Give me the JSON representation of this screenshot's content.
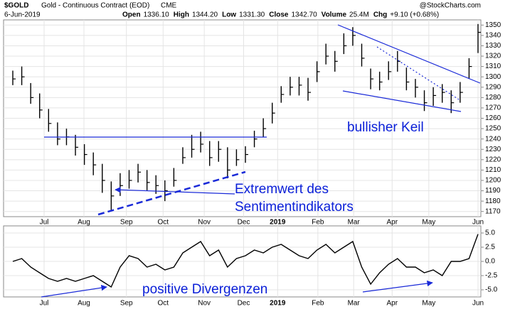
{
  "header": {
    "symbol": "$GOLD",
    "name": "Gold - Continuous Contract (EOD)",
    "exchange": "CME",
    "date": "6-Jun-2019",
    "source": "@StockCharts.com",
    "quote": [
      {
        "label": "Open",
        "value": "1336.10"
      },
      {
        "label": "High",
        "value": "1344.20"
      },
      {
        "label": "Low",
        "value": "1331.30"
      },
      {
        "label": "Close",
        "value": "1342.70"
      },
      {
        "label": "Volume",
        "value": "25.4M"
      },
      {
        "label": "Chg",
        "value": "+9.10 (+0.68%)"
      }
    ]
  },
  "chart_data": [
    {
      "type": "ohlc",
      "color": "#000000",
      "grid": true,
      "annotations": [
        "Extremwert des",
        "Sentimentindikators",
        "bullisher Keil"
      ],
      "series": [
        {
          "name": "High",
          "values": [
            1306,
            1310,
            1294,
            1284,
            1269,
            1256,
            1250,
            1244,
            1235,
            1227,
            1216,
            1199,
            1207,
            1210,
            1216,
            1210,
            1205,
            1200,
            1212,
            1232,
            1244,
            1247,
            1238,
            1238,
            1232,
            1230,
            1233,
            1248,
            1260,
            1275,
            1291,
            1300,
            1300,
            1299,
            1315,
            1332,
            1325,
            1342,
            1348,
            1332,
            1308,
            1305,
            1315,
            1325,
            1309,
            1298,
            1287,
            1290,
            1293,
            1287,
            1295,
            1318,
            1351
          ]
        },
        {
          "name": "Low",
          "values": [
            1292,
            1292,
            1274,
            1260,
            1247,
            1234,
            1234,
            1224,
            1215,
            1205,
            1188,
            1171,
            1185,
            1192,
            1198,
            1190,
            1187,
            1180,
            1194,
            1216,
            1222,
            1227,
            1214,
            1218,
            1202,
            1214,
            1217,
            1232,
            1242,
            1255,
            1275,
            1282,
            1282,
            1277,
            1295,
            1312,
            1305,
            1322,
            1330,
            1310,
            1288,
            1287,
            1297,
            1305,
            1287,
            1280,
            1267,
            1272,
            1275,
            1265,
            1275,
            1298,
            1323
          ]
        },
        {
          "name": "Close",
          "values": [
            1298,
            1300,
            1280,
            1268,
            1255,
            1240,
            1242,
            1232,
            1225,
            1215,
            1200,
            1185,
            1195,
            1200,
            1208,
            1198,
            1195,
            1190,
            1200,
            1222,
            1230,
            1235,
            1222,
            1230,
            1210,
            1220,
            1225,
            1240,
            1250,
            1265,
            1283,
            1290,
            1292,
            1285,
            1305,
            1320,
            1315,
            1330,
            1340,
            1318,
            1298,
            1295,
            1305,
            1315,
            1295,
            1290,
            1275,
            1282,
            1285,
            1275,
            1285,
            1310,
            1343
          ]
        }
      ],
      "ylim": [
        1165,
        1355
      ],
      "yticks": [
        1170,
        1180,
        1190,
        1200,
        1210,
        1220,
        1230,
        1240,
        1250,
        1260,
        1270,
        1280,
        1290,
        1300,
        1310,
        1320,
        1330,
        1340,
        1350
      ],
      "xlim": [
        0,
        52
      ],
      "xticks": [
        {
          "value": 3.5,
          "label": "Jul"
        },
        {
          "value": 7.95,
          "label": "Aug"
        },
        {
          "value": 12.7,
          "label": "Sep"
        },
        {
          "value": 16.8,
          "label": "Oct"
        },
        {
          "value": 21.4,
          "label": "Nov"
        },
        {
          "value": 25.8,
          "label": "Dec"
        },
        {
          "value": 29.6,
          "label": "2019"
        },
        {
          "value": 34.1,
          "label": "Feb"
        },
        {
          "value": 38.1,
          "label": "Mar"
        },
        {
          "value": 42.4,
          "label": "Apr"
        },
        {
          "value": 46.5,
          "label": "May"
        },
        {
          "value": 52,
          "label": "Jun"
        }
      ]
    },
    {
      "type": "line",
      "color": "#000000",
      "grid": true,
      "annotations": [
        "positive Divergenzen"
      ],
      "series": [
        {
          "name": "Sentiment",
          "values": [
            0.0,
            0.5,
            -1.0,
            -2.0,
            -3.0,
            -3.5,
            -3.0,
            -3.5,
            -3.0,
            -2.5,
            -3.5,
            -4.5,
            -1.0,
            1.0,
            0.5,
            -1.0,
            -0.5,
            -1.5,
            -1.0,
            1.5,
            2.5,
            3.5,
            1.0,
            2.0,
            -1.0,
            0.5,
            1.0,
            2.0,
            1.5,
            2.5,
            3.0,
            2.0,
            1.0,
            0.5,
            2.0,
            3.0,
            1.5,
            2.5,
            3.5,
            -1.0,
            -4.0,
            -2.0,
            -0.5,
            0.5,
            -1.0,
            -1.0,
            -2.0,
            -1.5,
            -2.5,
            0.0,
            0.0,
            0.5,
            4.8
          ]
        }
      ],
      "ylim": [
        -6.25,
        6.25
      ],
      "yticks": [
        {
          "value": 5,
          "label": "5.0"
        },
        {
          "value": 2.5,
          "label": "2.5"
        },
        {
          "value": 0,
          "label": "0.0"
        },
        {
          "value": -2.5,
          "label": "-2.5"
        },
        {
          "value": -5,
          "label": "-5.0"
        }
      ],
      "xlim": [
        0,
        52
      ],
      "xticks": [
        {
          "value": 3.5,
          "label": "Jul"
        },
        {
          "value": 7.95,
          "label": "Aug"
        },
        {
          "value": 12.7,
          "label": "Sep"
        },
        {
          "value": 16.8,
          "label": "Oct"
        },
        {
          "value": 21.4,
          "label": "Nov"
        },
        {
          "value": 25.8,
          "label": "Dec"
        },
        {
          "value": 29.6,
          "label": "2019"
        },
        {
          "value": 34.1,
          "label": "Feb"
        },
        {
          "value": 38.1,
          "label": "Mar"
        },
        {
          "value": 42.4,
          "label": "Apr"
        },
        {
          "value": 46.5,
          "label": "May"
        },
        {
          "value": 52,
          "label": "Jun"
        }
      ]
    }
  ]
}
